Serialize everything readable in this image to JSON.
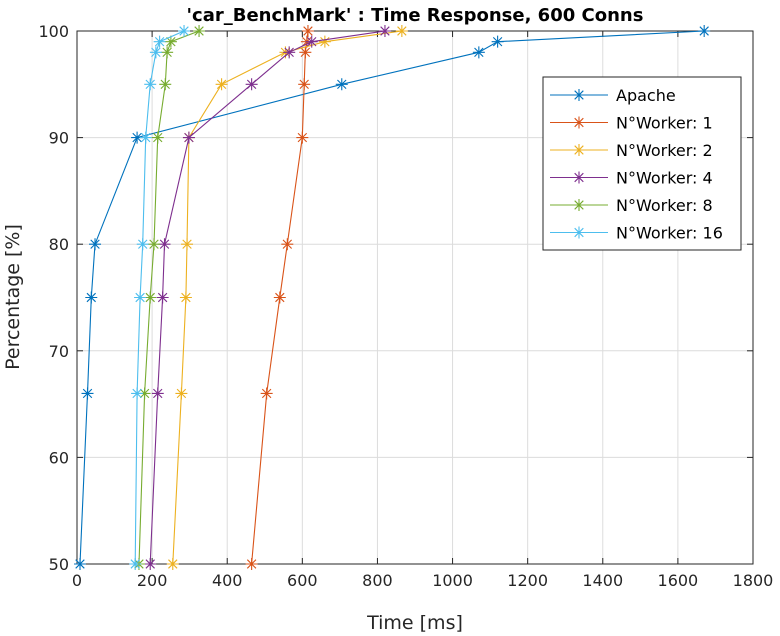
{
  "chart_data": {
    "type": "line",
    "title": "'car_BenchMark' : Time Response, 600 Conns",
    "xlabel": "Time [ms]",
    "ylabel": "Percentage [%]",
    "xlim": [
      0,
      1800
    ],
    "ylim": [
      50,
      100
    ],
    "xticks": [
      0,
      200,
      400,
      600,
      800,
      1000,
      1200,
      1400,
      1600,
      1800
    ],
    "yticks": [
      50,
      60,
      70,
      80,
      90,
      100
    ],
    "grid": true,
    "legend_position": "top-right",
    "marker": "asterisk",
    "series": [
      {
        "name": "Apache",
        "color": "#0072BD",
        "x": [
          8,
          28,
          38,
          48,
          160,
          705,
          1070,
          1120,
          1670
        ],
        "y": [
          50,
          66,
          75,
          80,
          90,
          95,
          98,
          99,
          100
        ]
      },
      {
        "name": "N°Worker: 1",
        "color": "#D95319",
        "x": [
          465,
          505,
          540,
          560,
          600,
          605,
          608,
          612,
          615
        ],
        "y": [
          50,
          66,
          75,
          80,
          90,
          95,
          98,
          99,
          100
        ]
      },
      {
        "name": "N°Worker: 2",
        "color": "#EDB120",
        "x": [
          255,
          278,
          290,
          293,
          298,
          385,
          555,
          660,
          865
        ],
        "y": [
          50,
          66,
          75,
          80,
          90,
          95,
          98,
          99,
          100
        ]
      },
      {
        "name": "N°Worker: 4",
        "color": "#7E2F8E",
        "x": [
          195,
          215,
          228,
          233,
          298,
          465,
          565,
          625,
          820
        ],
        "y": [
          50,
          66,
          75,
          80,
          90,
          95,
          98,
          99,
          100
        ]
      },
      {
        "name": "N°Worker: 8",
        "color": "#77AC30",
        "x": [
          165,
          180,
          195,
          205,
          215,
          235,
          240,
          250,
          325
        ],
        "y": [
          50,
          66,
          75,
          80,
          90,
          95,
          98,
          99,
          100
        ]
      },
      {
        "name": "N°Worker: 16",
        "color": "#4DBEEE",
        "x": [
          155,
          160,
          168,
          175,
          183,
          195,
          210,
          220,
          285
        ],
        "y": [
          50,
          66,
          75,
          80,
          90,
          95,
          98,
          99,
          100
        ]
      }
    ]
  }
}
